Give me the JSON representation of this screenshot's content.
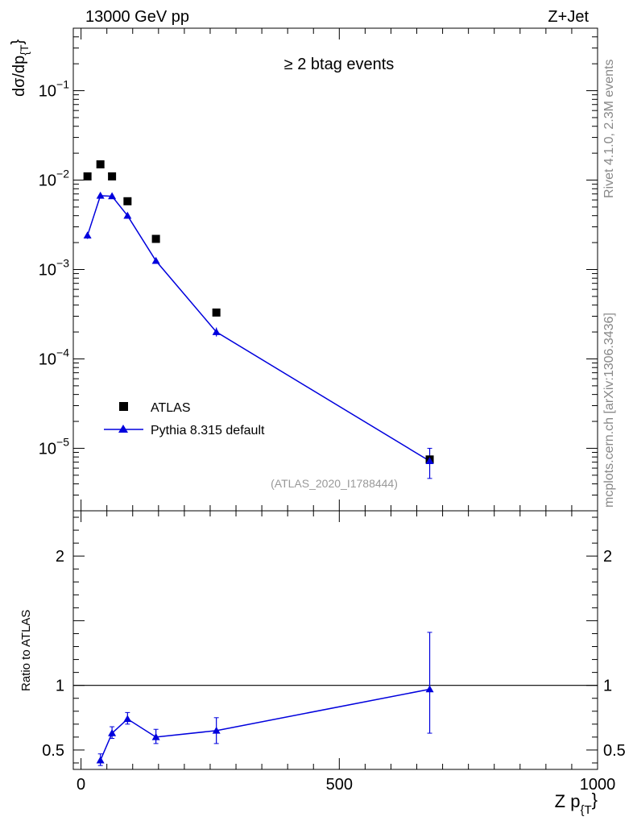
{
  "header": {
    "left": "13000 GeV pp",
    "right": "Z+Jet"
  },
  "side_text": {
    "top": "Rivet 4.1.0,  2.3M events",
    "bottom": "mcplots.cern.ch [arXiv:1306.3436]"
  },
  "colors": {
    "data": "#000000",
    "mc": "#0000dd",
    "watermark": "#999999"
  },
  "chart_data": [
    {
      "type": "scatter",
      "panel": "main",
      "title": "≥ 2 btag events",
      "watermark": "(ATLAS_2020_I1788444)",
      "ylabel_main": "dσ/dp",
      "ylabel_sub": "{T",
      "ylabel_close": "}",
      "yscale": "log",
      "ylim": [
        2e-06,
        0.5
      ],
      "xlim": [
        -15,
        1000
      ],
      "yticks": [
        {
          "value": 1e-05,
          "base": "10",
          "exp": "−5"
        },
        {
          "value": 0.0001,
          "base": "10",
          "exp": "−4"
        },
        {
          "value": 0.001,
          "base": "10",
          "exp": "−3"
        },
        {
          "value": 0.01,
          "base": "10",
          "exp": "−2"
        },
        {
          "value": 0.1,
          "base": "10",
          "exp": "−1"
        }
      ],
      "series": [
        {
          "name": "ATLAS",
          "marker": "square",
          "points": [
            {
              "x": 12.5,
              "y": 0.011
            },
            {
              "x": 37.5,
              "y": 0.015
            },
            {
              "x": 60,
              "y": 0.011
            },
            {
              "x": 90,
              "y": 0.0058
            },
            {
              "x": 145,
              "y": 0.0022
            },
            {
              "x": 262,
              "y": 0.00033
            },
            {
              "x": 675,
              "y": 7.5e-06
            }
          ]
        },
        {
          "name": "Pythia 8.315 default",
          "marker": "triangle",
          "points": [
            {
              "x": 12.5,
              "y": 0.0024,
              "ylo": 0.0022,
              "yhi": 0.0026
            },
            {
              "x": 37.5,
              "y": 0.0067,
              "ylo": 0.0064,
              "yhi": 0.007
            },
            {
              "x": 60,
              "y": 0.0066,
              "ylo": 0.0063,
              "yhi": 0.0069
            },
            {
              "x": 90,
              "y": 0.004,
              "ylo": 0.0038,
              "yhi": 0.0042
            },
            {
              "x": 145,
              "y": 0.00125,
              "ylo": 0.00117,
              "yhi": 0.00133
            },
            {
              "x": 262,
              "y": 0.0002,
              "ylo": 0.000178,
              "yhi": 0.000224
            },
            {
              "x": 675,
              "y": 7.2e-06,
              "ylo": 4.6e-06,
              "yhi": 1e-05
            }
          ]
        }
      ]
    },
    {
      "type": "line",
      "panel": "ratio",
      "ylabel": "Ratio to ATLAS",
      "xlabel_main": "Z p",
      "xlabel_sub": "{T",
      "xlabel_close": "}",
      "ylim": [
        0.35,
        2.35
      ],
      "xlim": [
        -15,
        1000
      ],
      "yticks": [
        {
          "value": 0.5,
          "label": "0.5"
        },
        {
          "value": 1,
          "label": "1"
        },
        {
          "value": 2,
          "label": "2"
        }
      ],
      "xticks": [
        {
          "value": 0,
          "label": "0"
        },
        {
          "value": 500,
          "label": "500"
        },
        {
          "value": 1000,
          "label": "1000"
        }
      ],
      "reference": 1,
      "series": [
        {
          "name": "Pythia 8.315 default",
          "points": [
            {
              "x": 37.5,
              "y": 0.42,
              "ylo": 0.38,
              "yhi": 0.47
            },
            {
              "x": 60,
              "y": 0.63,
              "ylo": 0.59,
              "yhi": 0.68
            },
            {
              "x": 90,
              "y": 0.74,
              "ylo": 0.7,
              "yhi": 0.79
            },
            {
              "x": 145,
              "y": 0.6,
              "ylo": 0.55,
              "yhi": 0.66
            },
            {
              "x": 262,
              "y": 0.65,
              "ylo": 0.55,
              "yhi": 0.75
            },
            {
              "x": 675,
              "y": 0.97,
              "ylo": 0.63,
              "yhi": 1.41
            }
          ]
        }
      ]
    }
  ]
}
